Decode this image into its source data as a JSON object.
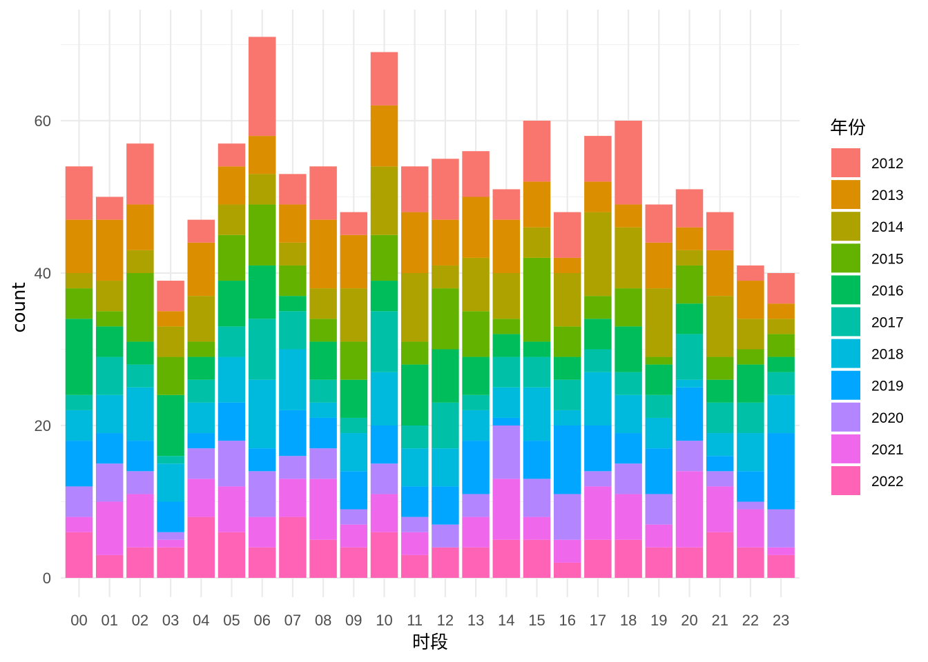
{
  "chart_data": {
    "type": "bar",
    "stacked": true,
    "title": "",
    "xlabel": "时段",
    "ylabel": "count",
    "ylim": [
      0,
      75
    ],
    "yticks": [
      0,
      20,
      40,
      60
    ],
    "grid": true,
    "legend_position": "right",
    "legend_title": "年份",
    "categories": [
      "00",
      "01",
      "02",
      "03",
      "04",
      "05",
      "06",
      "07",
      "08",
      "09",
      "10",
      "11",
      "12",
      "13",
      "14",
      "15",
      "16",
      "17",
      "18",
      "19",
      "20",
      "21",
      "22",
      "23"
    ],
    "series": [
      {
        "name": "2012",
        "color": "#F8766D",
        "values": [
          7,
          3,
          8,
          4,
          3,
          3,
          13,
          4,
          7,
          3,
          7,
          6,
          8,
          6,
          4,
          8,
          6,
          6,
          11,
          5,
          5,
          5,
          2,
          4
        ]
      },
      {
        "name": "2013",
        "color": "#DB8E00",
        "values": [
          7,
          8,
          6,
          2,
          7,
          5,
          5,
          5,
          9,
          7,
          8,
          8,
          6,
          8,
          7,
          6,
          2,
          4,
          3,
          6,
          3,
          6,
          5,
          2
        ]
      },
      {
        "name": "2014",
        "color": "#AEA200",
        "values": [
          2,
          4,
          3,
          4,
          6,
          4,
          4,
          3,
          4,
          7,
          9,
          9,
          3,
          7,
          6,
          4,
          7,
          11,
          8,
          9,
          2,
          8,
          4,
          2
        ]
      },
      {
        "name": "2015",
        "color": "#64B200",
        "values": [
          4,
          2,
          9,
          5,
          2,
          6,
          8,
          4,
          3,
          5,
          6,
          3,
          8,
          6,
          2,
          11,
          4,
          3,
          5,
          1,
          5,
          3,
          2,
          3
        ]
      },
      {
        "name": "2016",
        "color": "#00BD5C",
        "values": [
          10,
          4,
          3,
          8,
          3,
          6,
          7,
          2,
          5,
          5,
          4,
          8,
          7,
          5,
          3,
          2,
          3,
          4,
          6,
          4,
          4,
          3,
          5,
          2
        ]
      },
      {
        "name": "2017",
        "color": "#00C1A7",
        "values": [
          2,
          5,
          3,
          1,
          3,
          4,
          8,
          5,
          3,
          2,
          8,
          3,
          6,
          2,
          4,
          4,
          4,
          3,
          3,
          3,
          6,
          4,
          4,
          3
        ]
      },
      {
        "name": "2018",
        "color": "#00BADE",
        "values": [
          4,
          5,
          7,
          5,
          4,
          6,
          9,
          8,
          2,
          5,
          7,
          5,
          5,
          4,
          4,
          7,
          2,
          7,
          5,
          4,
          1,
          3,
          5,
          5
        ]
      },
      {
        "name": "2019",
        "color": "#00A6FF",
        "values": [
          6,
          4,
          4,
          4,
          2,
          5,
          3,
          6,
          4,
          5,
          5,
          4,
          5,
          7,
          1,
          5,
          9,
          6,
          4,
          6,
          7,
          2,
          4,
          10
        ]
      },
      {
        "name": "2020",
        "color": "#B385FF",
        "values": [
          4,
          5,
          3,
          1,
          4,
          6,
          6,
          3,
          4,
          2,
          4,
          2,
          3,
          3,
          7,
          5,
          6,
          2,
          4,
          4,
          4,
          2,
          1,
          5
        ]
      },
      {
        "name": "2021",
        "color": "#EF67EB",
        "values": [
          2,
          7,
          7,
          1,
          5,
          6,
          4,
          5,
          8,
          3,
          5,
          3,
          0,
          4,
          8,
          3,
          3,
          7,
          6,
          3,
          10,
          6,
          5,
          1
        ]
      },
      {
        "name": "2022",
        "color": "#FF63B6",
        "values": [
          6,
          3,
          4,
          4,
          8,
          6,
          4,
          8,
          5,
          4,
          6,
          3,
          4,
          4,
          5,
          5,
          2,
          5,
          5,
          4,
          4,
          6,
          4,
          3
        ]
      }
    ]
  }
}
